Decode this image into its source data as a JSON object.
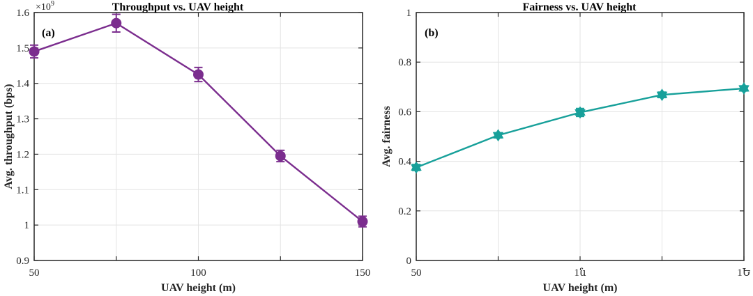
{
  "chart_data": [
    {
      "type": "line",
      "panel_label": "(a)",
      "title": "Throughput vs. UAV height",
      "xlabel": "UAV height (m)",
      "ylabel": "Avg. throughput (bps)",
      "y_exponent_base": "×10",
      "y_exponent_power": "9",
      "xlim": [
        50,
        150
      ],
      "ylim": [
        0.9,
        1.6
      ],
      "x_ticks": [
        50,
        100,
        150
      ],
      "x_tick_labels": [
        "50",
        "100",
        "150"
      ],
      "y_ticks": [
        0.9,
        1.0,
        1.1,
        1.2,
        1.3,
        1.4,
        1.5,
        1.6
      ],
      "y_tick_labels": [
        "0.9",
        "1",
        "1.1",
        "1.2",
        "1.3",
        "1.4",
        "1.5",
        "1.6"
      ],
      "grid": true,
      "color": "#7B2D8E",
      "marker": "circle",
      "series": [
        {
          "x": [
            50,
            75,
            100,
            125,
            150
          ],
          "values": [
            1.49,
            1.57,
            1.425,
            1.195,
            1.01
          ],
          "error": [
            0.018,
            0.025,
            0.02,
            0.016,
            0.015
          ]
        }
      ]
    },
    {
      "type": "line",
      "panel_label": "(b)",
      "title": "Fairness vs. UAV height",
      "xlabel": "UAV height (m)",
      "ylabel": "Avg. fairness",
      "xlim": [
        50,
        150
      ],
      "ylim": [
        0,
        1
      ],
      "x_ticks": [
        50,
        100,
        150
      ],
      "x_tick_labels": [
        "50",
        "1ն",
        "1Ե"
      ],
      "y_ticks": [
        0,
        0.2,
        0.4,
        0.6,
        0.8,
        1.0
      ],
      "y_tick_labels": [
        "0",
        "0.2",
        "0.4",
        "0.6",
        "0.8",
        "1"
      ],
      "grid": true,
      "color": "#17A09A",
      "marker": "hexagram",
      "series": [
        {
          "x": [
            50,
            75,
            100,
            125,
            150
          ],
          "values": [
            0.375,
            0.505,
            0.597,
            0.668,
            0.694
          ],
          "error": [
            0.012,
            0.01,
            0.016,
            0.011,
            0.009
          ]
        }
      ]
    }
  ]
}
